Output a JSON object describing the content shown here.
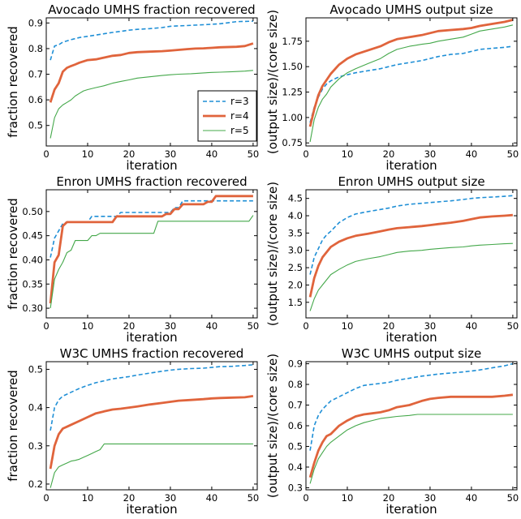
{
  "colors": {
    "r3": "#1f8fd6",
    "r4": "#e0643c",
    "r5": "#44a84a"
  },
  "legend": {
    "panel": 0,
    "entries": [
      {
        "label": "r=3",
        "color": "#1f8fd6",
        "style": "dashed"
      },
      {
        "label": "r=4",
        "color": "#e0643c",
        "style": "thick"
      },
      {
        "label": "r=5",
        "color": "#44a84a",
        "style": "thin"
      }
    ]
  },
  "chart_data": [
    {
      "type": "line",
      "title": "Avocado UMHS fraction recovered",
      "xlabel": "iteration",
      "ylabel": "fraction recovered",
      "xlim": [
        0,
        51
      ],
      "ylim": [
        0.42,
        0.92
      ],
      "xticks": [
        0,
        10,
        20,
        30,
        40,
        50
      ],
      "yticks": [
        0.5,
        0.6,
        0.7,
        0.8,
        0.9
      ],
      "ytick_labels": [
        "0.5",
        "0.6",
        "0.7",
        "0.8",
        "0.9"
      ],
      "series": [
        {
          "name": "r=3",
          "x": [
            1,
            2,
            3,
            4,
            6,
            8,
            10,
            12,
            14,
            16,
            18,
            20,
            22,
            25,
            28,
            30,
            34,
            38,
            42,
            46,
            50
          ],
          "y": [
            0.755,
            0.81,
            0.815,
            0.825,
            0.835,
            0.843,
            0.848,
            0.853,
            0.858,
            0.863,
            0.867,
            0.872,
            0.875,
            0.878,
            0.882,
            0.887,
            0.89,
            0.893,
            0.897,
            0.905,
            0.907
          ]
        },
        {
          "name": "r=4",
          "x": [
            1,
            2,
            3,
            4,
            5,
            6,
            7,
            8,
            9,
            10,
            12,
            14,
            16,
            18,
            20,
            22,
            25,
            28,
            30,
            32,
            34,
            36,
            38,
            40,
            42,
            46,
            48,
            50
          ],
          "y": [
            0.59,
            0.64,
            0.665,
            0.71,
            0.725,
            0.732,
            0.738,
            0.745,
            0.75,
            0.755,
            0.758,
            0.765,
            0.772,
            0.775,
            0.783,
            0.786,
            0.788,
            0.79,
            0.792,
            0.795,
            0.798,
            0.8,
            0.801,
            0.803,
            0.805,
            0.807,
            0.81,
            0.82
          ]
        },
        {
          "name": "r=5",
          "x": [
            1,
            2,
            3,
            4,
            5,
            6,
            7,
            8,
            9,
            10,
            12,
            14,
            16,
            18,
            20,
            22,
            25,
            28,
            30,
            32,
            35,
            38,
            40,
            42,
            45,
            48,
            50
          ],
          "y": [
            0.45,
            0.53,
            0.565,
            0.58,
            0.59,
            0.6,
            0.615,
            0.625,
            0.635,
            0.64,
            0.648,
            0.655,
            0.665,
            0.672,
            0.678,
            0.685,
            0.69,
            0.695,
            0.698,
            0.7,
            0.702,
            0.705,
            0.707,
            0.708,
            0.71,
            0.712,
            0.715
          ]
        }
      ]
    },
    {
      "type": "line",
      "title": "Avocado UMHS output size",
      "xlabel": "iteration",
      "ylabel": "(output size)/(core size)",
      "xlim": [
        0,
        51
      ],
      "ylim": [
        0.72,
        1.98
      ],
      "xticks": [
        0,
        10,
        20,
        30,
        40,
        50
      ],
      "yticks": [
        0.75,
        1.0,
        1.25,
        1.5,
        1.75
      ],
      "ytick_labels": [
        "0.75",
        "1.00",
        "1.25",
        "1.50",
        "1.75"
      ],
      "series": [
        {
          "name": "r=3",
          "x": [
            1,
            2,
            3,
            4,
            5,
            6,
            8,
            10,
            12,
            15,
            18,
            20,
            22,
            25,
            28,
            30,
            32,
            35,
            38,
            40,
            42,
            45,
            48,
            50
          ],
          "y": [
            0.95,
            1.1,
            1.2,
            1.28,
            1.33,
            1.36,
            1.4,
            1.42,
            1.44,
            1.46,
            1.48,
            1.5,
            1.52,
            1.54,
            1.56,
            1.58,
            1.6,
            1.62,
            1.63,
            1.65,
            1.67,
            1.68,
            1.69,
            1.7
          ]
        },
        {
          "name": "r=4",
          "x": [
            1,
            2,
            3,
            4,
            5,
            6,
            8,
            10,
            12,
            15,
            18,
            20,
            22,
            25,
            28,
            30,
            32,
            35,
            38,
            40,
            42,
            45,
            48,
            50
          ],
          "y": [
            0.91,
            1.08,
            1.22,
            1.31,
            1.37,
            1.43,
            1.52,
            1.58,
            1.62,
            1.66,
            1.7,
            1.74,
            1.77,
            1.79,
            1.81,
            1.83,
            1.85,
            1.86,
            1.87,
            1.88,
            1.9,
            1.92,
            1.94,
            1.96
          ]
        },
        {
          "name": "r=5",
          "x": [
            1,
            2,
            3,
            4,
            5,
            6,
            8,
            10,
            12,
            15,
            18,
            20,
            22,
            25,
            28,
            30,
            32,
            35,
            38,
            40,
            42,
            45,
            48,
            50
          ],
          "y": [
            0.76,
            0.98,
            1.1,
            1.18,
            1.23,
            1.3,
            1.38,
            1.44,
            1.48,
            1.53,
            1.58,
            1.63,
            1.67,
            1.7,
            1.72,
            1.73,
            1.75,
            1.77,
            1.79,
            1.82,
            1.85,
            1.87,
            1.89,
            1.91
          ]
        }
      ]
    },
    {
      "type": "line",
      "title": "Enron UMHS fraction recovered",
      "xlabel": "iteration",
      "ylabel": "fraction recovered",
      "xlim": [
        0,
        51
      ],
      "ylim": [
        0.28,
        0.545
      ],
      "xticks": [
        0,
        10,
        20,
        30,
        40,
        50
      ],
      "yticks": [
        0.3,
        0.35,
        0.4,
        0.45,
        0.5
      ],
      "ytick_labels": [
        "0.30",
        "0.35",
        "0.40",
        "0.45",
        "0.50"
      ],
      "series": [
        {
          "name": "r=3",
          "x": [
            1,
            2,
            3,
            4,
            5,
            10,
            11,
            17,
            18,
            30,
            31,
            32,
            33,
            35,
            50
          ],
          "y": [
            0.405,
            0.445,
            0.46,
            0.475,
            0.478,
            0.478,
            0.49,
            0.49,
            0.498,
            0.498,
            0.508,
            0.508,
            0.522,
            0.522,
            0.522
          ]
        },
        {
          "name": "r=4",
          "x": [
            1,
            2,
            3,
            4,
            5,
            16,
            17,
            28,
            29,
            30,
            31,
            32,
            33,
            34,
            38,
            39,
            40,
            41,
            50
          ],
          "y": [
            0.31,
            0.395,
            0.41,
            0.47,
            0.478,
            0.478,
            0.49,
            0.49,
            0.495,
            0.495,
            0.505,
            0.505,
            0.515,
            0.515,
            0.515,
            0.52,
            0.52,
            0.532,
            0.532
          ]
        },
        {
          "name": "r=5",
          "x": [
            1,
            2,
            3,
            4,
            5,
            6,
            7,
            10,
            11,
            12,
            13,
            14,
            26,
            27,
            49,
            50
          ],
          "y": [
            0.3,
            0.36,
            0.38,
            0.395,
            0.415,
            0.42,
            0.44,
            0.44,
            0.45,
            0.45,
            0.455,
            0.455,
            0.455,
            0.48,
            0.48,
            0.492
          ]
        }
      ]
    },
    {
      "type": "line",
      "title": "Enron UMHS output size",
      "xlabel": "iteration",
      "ylabel": "(output size)/(core size)",
      "xlim": [
        0,
        51
      ],
      "ylim": [
        1.05,
        4.75
      ],
      "xticks": [
        0,
        10,
        20,
        30,
        40,
        50
      ],
      "yticks": [
        1.5,
        2.0,
        2.5,
        3.0,
        3.5,
        4.0,
        4.5
      ],
      "ytick_labels": [
        "1.5",
        "2.0",
        "2.5",
        "3.0",
        "3.5",
        "4.0",
        "4.5"
      ],
      "series": [
        {
          "name": "r=3",
          "x": [
            1,
            2,
            3,
            4,
            5,
            6,
            8,
            10,
            12,
            15,
            18,
            20,
            22,
            25,
            28,
            30,
            32,
            35,
            38,
            40,
            42,
            45,
            48,
            50
          ],
          "y": [
            2.3,
            2.8,
            3.05,
            3.3,
            3.45,
            3.55,
            3.8,
            3.95,
            4.05,
            4.12,
            4.18,
            4.22,
            4.28,
            4.33,
            4.36,
            4.38,
            4.4,
            4.43,
            4.47,
            4.5,
            4.52,
            4.54,
            4.56,
            4.58
          ]
        },
        {
          "name": "r=4",
          "x": [
            1,
            2,
            3,
            4,
            5,
            6,
            8,
            10,
            12,
            15,
            18,
            20,
            22,
            25,
            28,
            30,
            32,
            35,
            38,
            40,
            42,
            45,
            48,
            50
          ],
          "y": [
            1.65,
            2.2,
            2.55,
            2.8,
            2.95,
            3.1,
            3.25,
            3.35,
            3.42,
            3.48,
            3.55,
            3.6,
            3.64,
            3.67,
            3.7,
            3.73,
            3.76,
            3.8,
            3.85,
            3.9,
            3.95,
            3.98,
            4.0,
            4.02
          ]
        },
        {
          "name": "r=5",
          "x": [
            1,
            2,
            3,
            4,
            5,
            6,
            8,
            10,
            12,
            15,
            18,
            20,
            22,
            25,
            28,
            30,
            32,
            35,
            38,
            40,
            42,
            45,
            48,
            50
          ],
          "y": [
            1.25,
            1.6,
            1.85,
            2.0,
            2.15,
            2.3,
            2.45,
            2.58,
            2.68,
            2.76,
            2.82,
            2.88,
            2.94,
            2.98,
            3.0,
            3.03,
            3.05,
            3.08,
            3.1,
            3.13,
            3.15,
            3.17,
            3.19,
            3.2
          ]
        }
      ]
    },
    {
      "type": "line",
      "title": "W3C UMHS fraction recovered",
      "xlabel": "iteration",
      "ylabel": "fraction recovered",
      "xlim": [
        0,
        51
      ],
      "ylim": [
        0.185,
        0.52
      ],
      "xticks": [
        0,
        10,
        20,
        30,
        40,
        50
      ],
      "yticks": [
        0.2,
        0.3,
        0.4,
        0.5
      ],
      "ytick_labels": [
        "0.2",
        "0.3",
        "0.4",
        "0.5"
      ],
      "series": [
        {
          "name": "r=3",
          "x": [
            1,
            2,
            3,
            4,
            5,
            6,
            8,
            10,
            12,
            14,
            16,
            18,
            20,
            22,
            25,
            28,
            30,
            32,
            35,
            38,
            40,
            42,
            45,
            48,
            50
          ],
          "y": [
            0.34,
            0.4,
            0.42,
            0.43,
            0.435,
            0.44,
            0.45,
            0.458,
            0.465,
            0.47,
            0.475,
            0.478,
            0.481,
            0.485,
            0.49,
            0.495,
            0.498,
            0.5,
            0.502,
            0.503,
            0.505,
            0.507,
            0.508,
            0.51,
            0.512
          ]
        },
        {
          "name": "r=4",
          "x": [
            1,
            2,
            3,
            4,
            5,
            6,
            8,
            10,
            12,
            14,
            16,
            18,
            20,
            22,
            25,
            28,
            30,
            32,
            35,
            38,
            40,
            42,
            45,
            48,
            50
          ],
          "y": [
            0.24,
            0.3,
            0.33,
            0.345,
            0.35,
            0.355,
            0.365,
            0.375,
            0.385,
            0.39,
            0.395,
            0.397,
            0.4,
            0.403,
            0.408,
            0.412,
            0.415,
            0.418,
            0.42,
            0.422,
            0.424,
            0.425,
            0.426,
            0.427,
            0.43
          ]
        },
        {
          "name": "r=5",
          "x": [
            1,
            2,
            3,
            4,
            5,
            6,
            7,
            8,
            9,
            10,
            11,
            12,
            13,
            14,
            15,
            20,
            30,
            40,
            50
          ],
          "y": [
            0.19,
            0.23,
            0.245,
            0.25,
            0.255,
            0.26,
            0.262,
            0.265,
            0.27,
            0.275,
            0.28,
            0.285,
            0.29,
            0.305,
            0.305,
            0.305,
            0.305,
            0.305,
            0.305
          ]
        }
      ]
    },
    {
      "type": "line",
      "title": "W3C UMHS output size",
      "xlabel": "iteration",
      "ylabel": "(output size)/(core size)",
      "xlim": [
        0,
        51
      ],
      "ylim": [
        0.29,
        0.91
      ],
      "xticks": [
        0,
        10,
        20,
        30,
        40,
        50
      ],
      "yticks": [
        0.3,
        0.4,
        0.5,
        0.6,
        0.7,
        0.8,
        0.9
      ],
      "ytick_labels": [
        "0.3",
        "0.4",
        "0.5",
        "0.6",
        "0.7",
        "0.8",
        "0.9"
      ],
      "series": [
        {
          "name": "r=3",
          "x": [
            1,
            2,
            3,
            4,
            5,
            6,
            8,
            10,
            12,
            14,
            16,
            18,
            20,
            22,
            25,
            28,
            30,
            32,
            35,
            38,
            40,
            42,
            45,
            48,
            50
          ],
          "y": [
            0.48,
            0.6,
            0.65,
            0.68,
            0.7,
            0.72,
            0.74,
            0.76,
            0.78,
            0.795,
            0.8,
            0.805,
            0.81,
            0.82,
            0.83,
            0.84,
            0.845,
            0.85,
            0.855,
            0.86,
            0.865,
            0.87,
            0.88,
            0.89,
            0.9
          ]
        },
        {
          "name": "r=4",
          "x": [
            1,
            2,
            3,
            4,
            5,
            6,
            8,
            10,
            12,
            14,
            16,
            18,
            20,
            22,
            25,
            28,
            30,
            32,
            35,
            38,
            40,
            42,
            45,
            48,
            50
          ],
          "y": [
            0.35,
            0.42,
            0.48,
            0.52,
            0.55,
            0.56,
            0.6,
            0.625,
            0.645,
            0.655,
            0.66,
            0.665,
            0.675,
            0.69,
            0.7,
            0.72,
            0.73,
            0.735,
            0.74,
            0.74,
            0.74,
            0.74,
            0.74,
            0.745,
            0.75
          ]
        },
        {
          "name": "r=5",
          "x": [
            1,
            2,
            3,
            4,
            5,
            6,
            8,
            10,
            12,
            14,
            16,
            18,
            20,
            22,
            25,
            27,
            30,
            35,
            40,
            45,
            50
          ],
          "y": [
            0.32,
            0.39,
            0.44,
            0.47,
            0.5,
            0.52,
            0.55,
            0.58,
            0.6,
            0.615,
            0.625,
            0.635,
            0.64,
            0.645,
            0.65,
            0.655,
            0.655,
            0.655,
            0.655,
            0.655,
            0.655
          ]
        }
      ]
    }
  ]
}
